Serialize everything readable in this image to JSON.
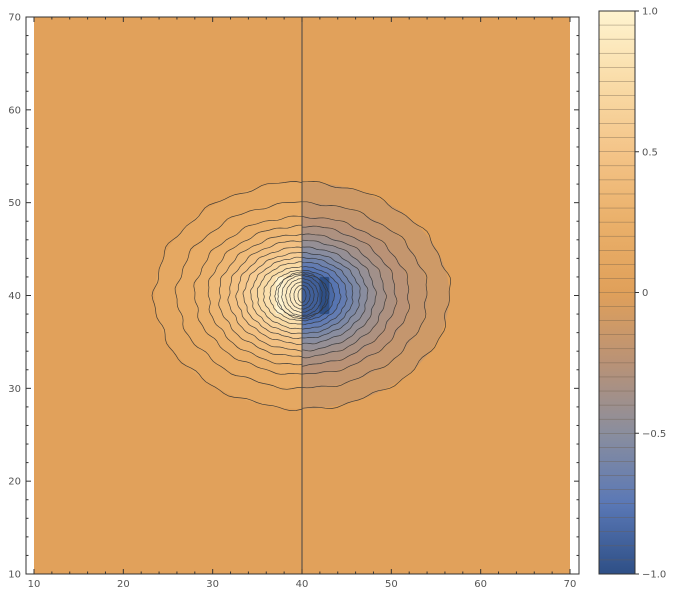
{
  "chart_data": {
    "type": "heatmap",
    "subtype": "contour",
    "title": "",
    "xlabel": "",
    "ylabel": "",
    "xlim": [
      10,
      70
    ],
    "ylim": [
      10,
      70
    ],
    "x_ticks": [
      "10",
      "20",
      "30",
      "40",
      "50",
      "60",
      "70"
    ],
    "y_ticks": [
      "10",
      "20",
      "30",
      "40",
      "50",
      "60",
      "70"
    ],
    "zlim": [
      -1.0,
      1.0
    ],
    "colorbar_ticks": [
      "1.0",
      "0.5",
      "0",
      "−0.5",
      "−1.0"
    ],
    "colorbar_tick_values": [
      1.0,
      0.5,
      0,
      -0.5,
      -1.0
    ],
    "colorscale": [
      {
        "value": -1.0,
        "color": "#2e4f86"
      },
      {
        "value": -0.75,
        "color": "#5a78b6"
      },
      {
        "value": -0.5,
        "color": "#8a8e9e"
      },
      {
        "value": -0.25,
        "color": "#b99276"
      },
      {
        "value": 0.0,
        "color": "#e0a05a"
      },
      {
        "value": 0.25,
        "color": "#eab06a"
      },
      {
        "value": 0.5,
        "color": "#f4c488"
      },
      {
        "value": 0.75,
        "color": "#f9dca8"
      },
      {
        "value": 1.0,
        "color": "#fff4d0"
      }
    ],
    "background_value": 0.02,
    "dipole": {
      "center": [
        40,
        40
      ],
      "positive_pole": [
        37.5,
        40
      ],
      "negative_pole": [
        42.5,
        40
      ],
      "pole_half_height": 2.0
    },
    "nodal_line_x": 40,
    "contour_levels": [
      {
        "x_extent": 16.5,
        "y_extent": 12.2
      },
      {
        "x_extent": 14.0,
        "y_extent": 10.0
      },
      {
        "x_extent": 12.0,
        "y_extent": 8.5
      },
      {
        "x_extent": 10.5,
        "y_extent": 7.5
      },
      {
        "x_extent": 9.3,
        "y_extent": 6.6
      },
      {
        "x_extent": 8.2,
        "y_extent": 5.9
      },
      {
        "x_extent": 7.3,
        "y_extent": 5.2
      },
      {
        "x_extent": 6.5,
        "y_extent": 4.6
      },
      {
        "x_extent": 5.7,
        "y_extent": 4.1
      },
      {
        "x_extent": 5.0,
        "y_extent": 3.6
      },
      {
        "x_extent": 4.3,
        "y_extent": 3.1
      },
      {
        "x_extent": 3.6,
        "y_extent": 2.7
      },
      {
        "x_extent": 3.0,
        "y_extent": 2.3
      }
    ]
  }
}
